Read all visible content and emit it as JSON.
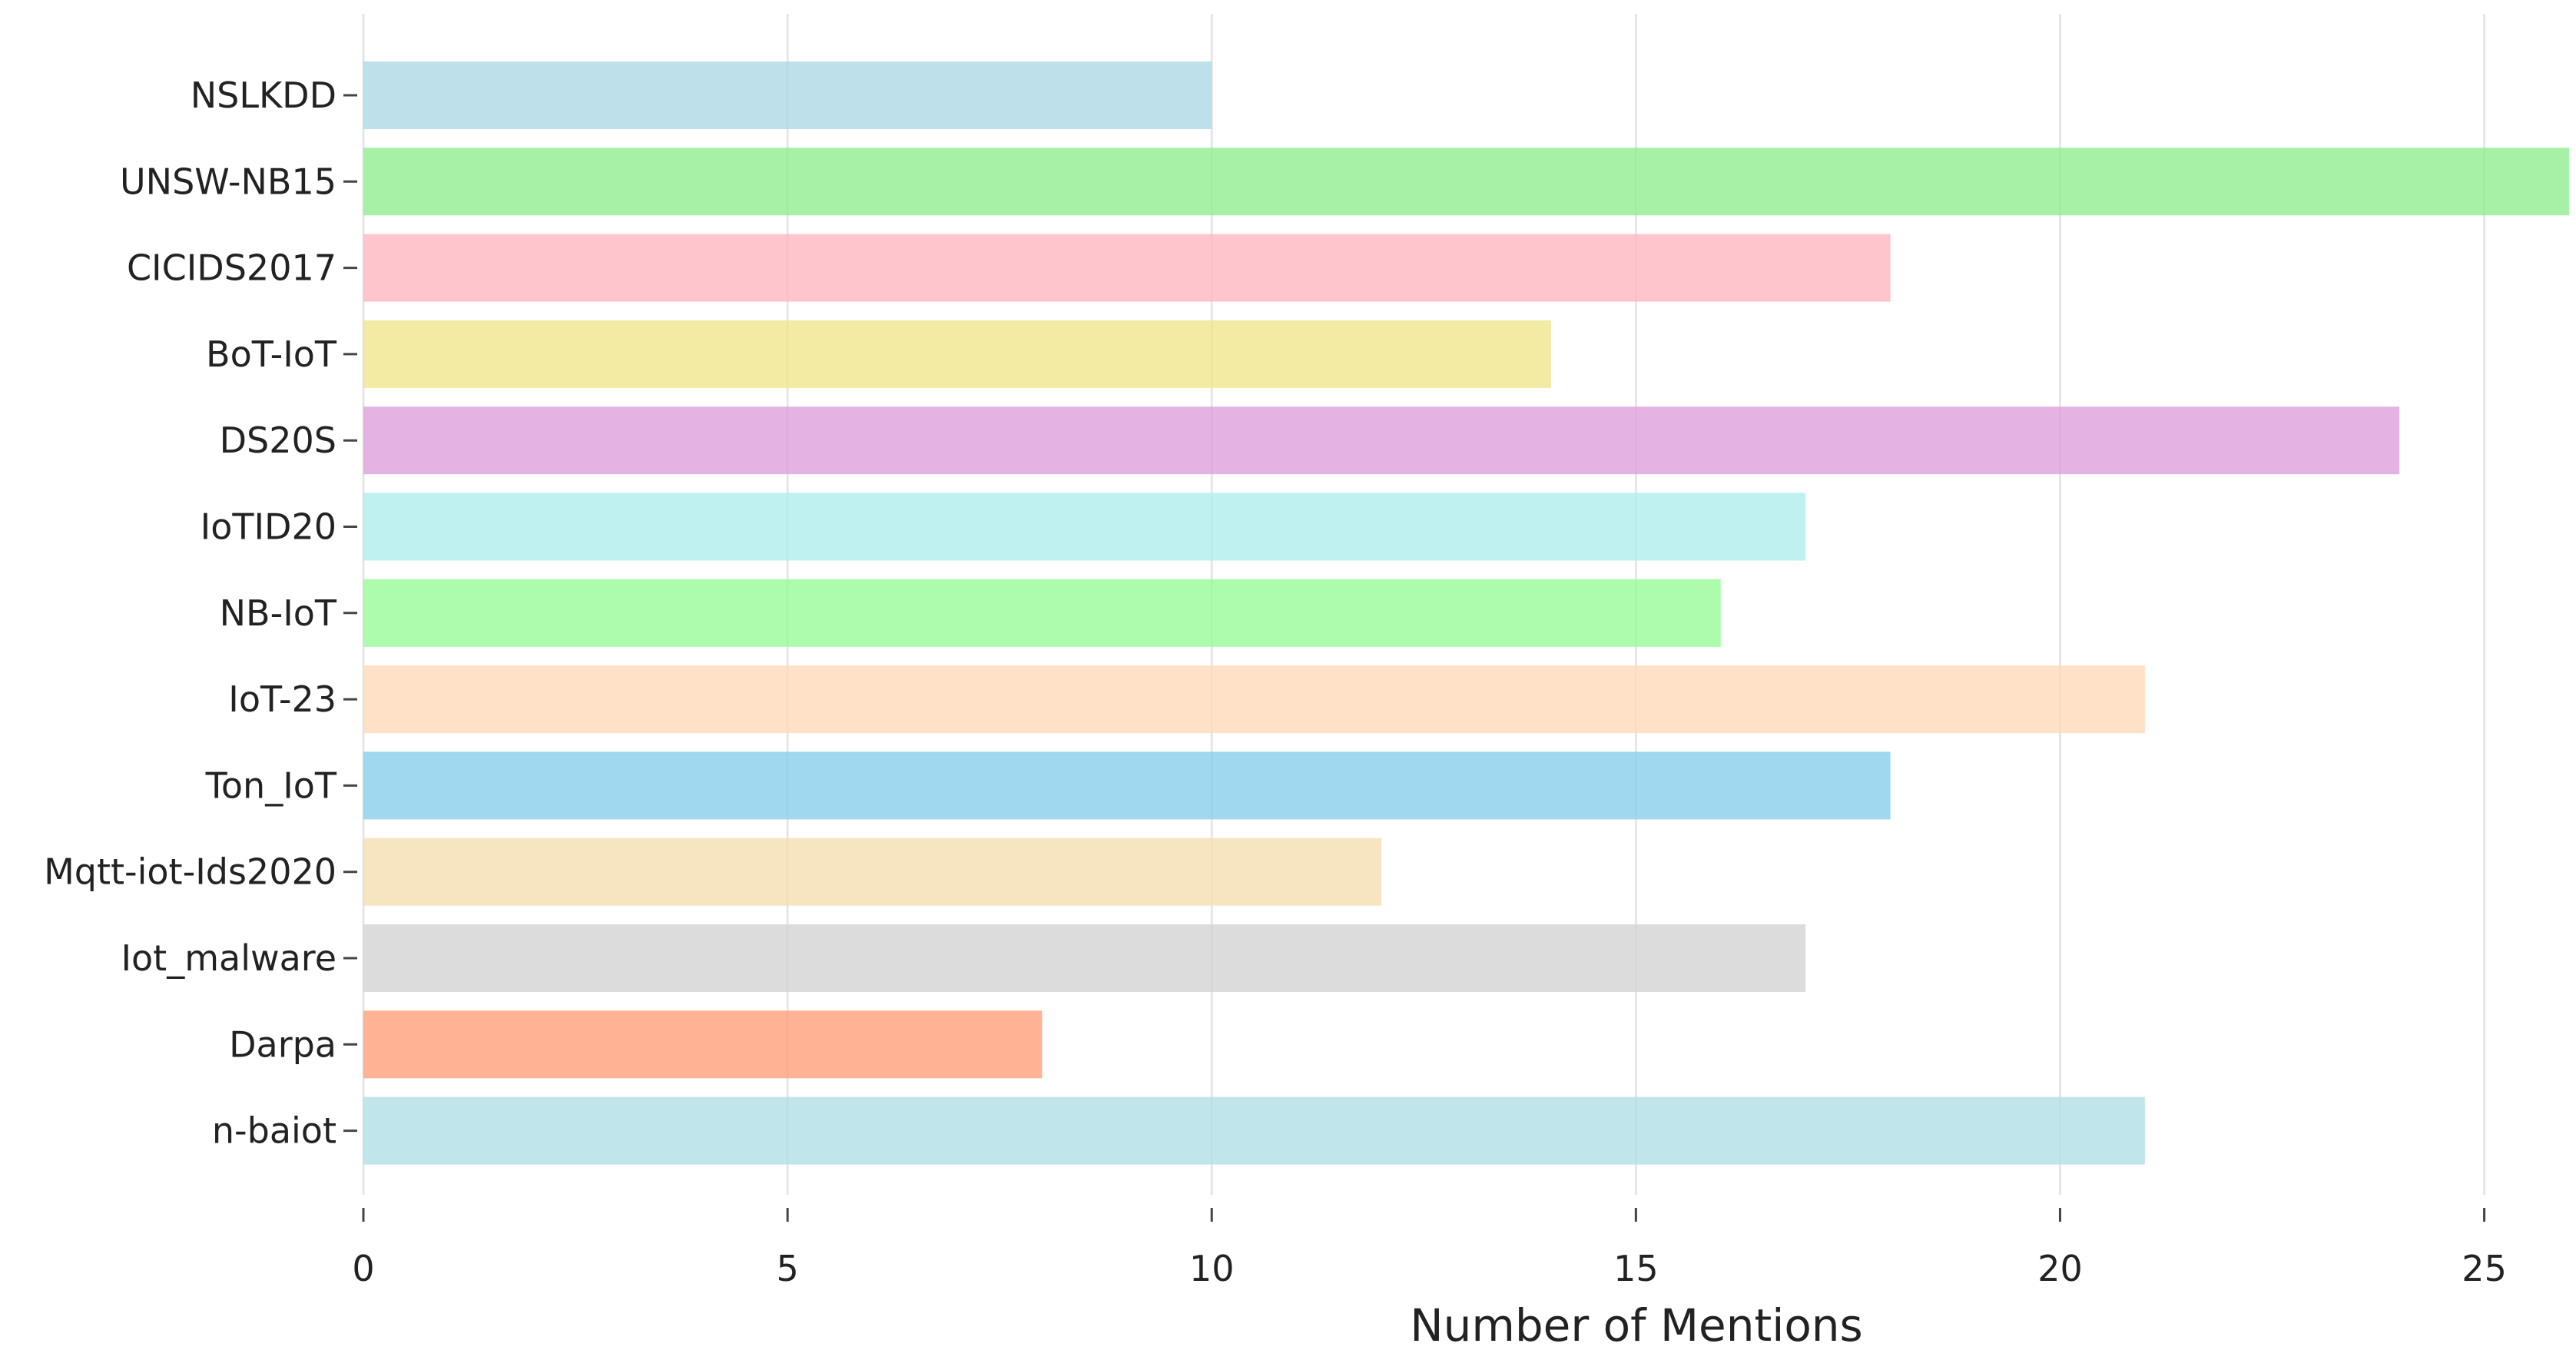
{
  "chart_data": {
    "type": "bar",
    "orientation": "horizontal",
    "categories": [
      "NSLKDD",
      "UNSW-NB15",
      "CICIDS2017",
      "BoT-IoT",
      "DS20S",
      "IoTID20",
      "NB-IoT",
      "IoT-23",
      "Ton_IoT",
      "Mqtt-iot-Ids2020",
      "Iot_malware",
      "Darpa",
      "n-baiot"
    ],
    "values": [
      10,
      26,
      18,
      14,
      24,
      17,
      16,
      21,
      18,
      12,
      17,
      8,
      21
    ],
    "colors": [
      "#add8e6",
      "#90ee90",
      "#ffb6c1",
      "#f0e68c",
      "#dda0dd",
      "#afeeee",
      "#98fb98",
      "#ffdab9",
      "#87ceeb",
      "#f5deb3",
      "#d3d3d3",
      "#ffa07a",
      "#b0e0e6"
    ],
    "title": "",
    "xlabel": "Number of Mentions",
    "ylabel": "",
    "xlim": [
      0,
      26
    ],
    "xticks": [
      0,
      5,
      10,
      15,
      20,
      25
    ],
    "grid": "vertical",
    "bar_opacity": 0.8
  }
}
